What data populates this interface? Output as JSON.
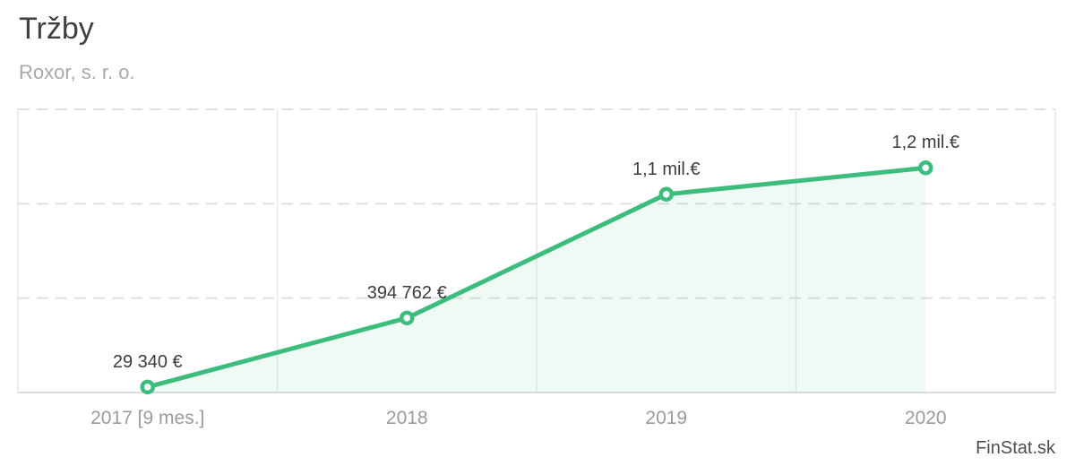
{
  "header": {
    "title": "Tržby",
    "subtitle": "Roxor, s. r. o."
  },
  "watermark": "FinStat.sk",
  "colors": {
    "line": "#3cbd7e",
    "marker_fill": "#ffffff",
    "area_fill": "rgba(60,189,126,0.08)",
    "grid_dashed": "#e0e0e0",
    "grid_vertical": "#e9e9e9",
    "axis_line": "#dcdcdc",
    "title_text": "#3f3f3f",
    "subtitle_text": "#a9a9a9",
    "axis_label_text": "#9b9b9b",
    "data_label_text": "#3c3c3c",
    "watermark_text": "#4d4d4d"
  },
  "chart_data": {
    "type": "area",
    "title": "Tržby",
    "subtitle": "Roxor, s. r. o.",
    "categories": [
      "2017 [9 mes.]",
      "2018",
      "2019",
      "2020"
    ],
    "series": [
      {
        "name": "Tržby",
        "values": [
          29340,
          394762,
          1050000,
          1190000
        ],
        "point_labels": [
          "29 340 €",
          "394 762 €",
          "1,1 mil.€",
          "1,2 mil.€"
        ]
      }
    ],
    "ylim": [
      0,
      1500000
    ],
    "h_gridline_values": [
      500000,
      1000000,
      1500000
    ],
    "grid": {
      "horizontal": "dashed",
      "vertical": "solid"
    },
    "legend": "none"
  }
}
